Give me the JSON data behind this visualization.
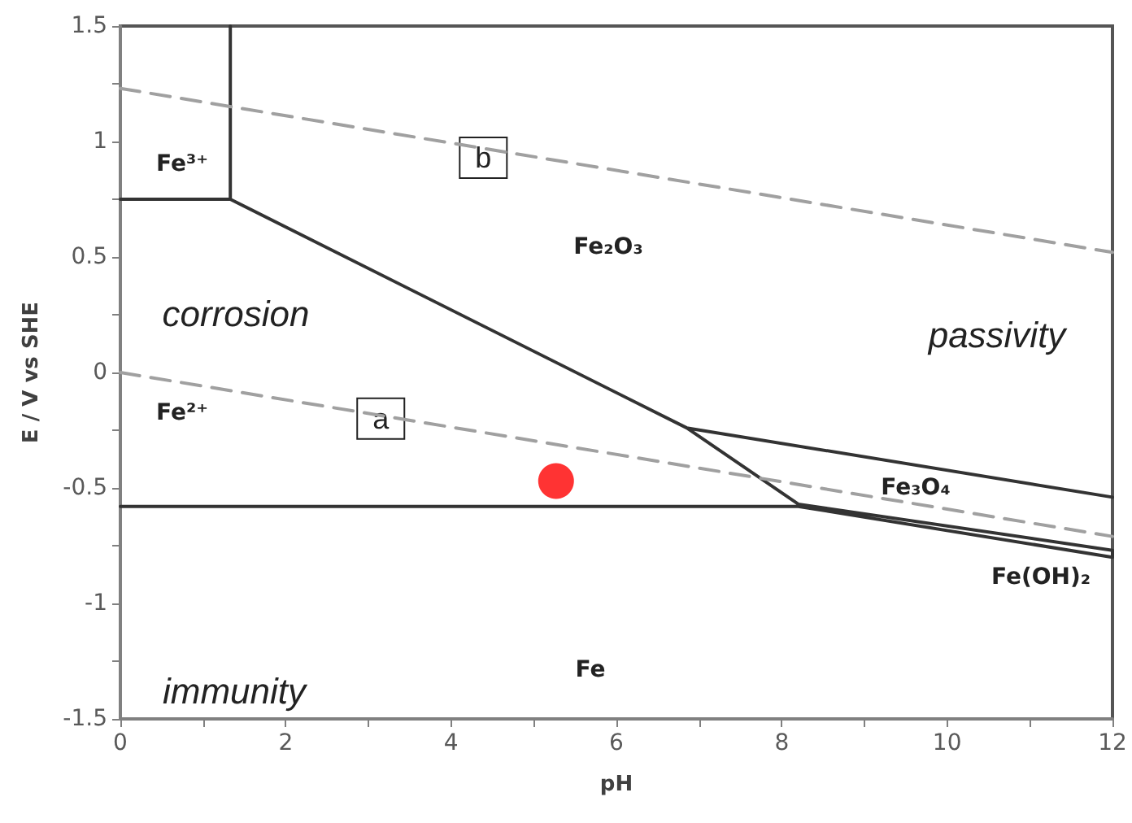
{
  "chart_data": {
    "type": "line",
    "xlabel": "pH",
    "ylabel": "E / V vs SHE",
    "xlim": [
      0,
      12
    ],
    "ylim": [
      -1.5,
      1.5
    ],
    "xticks": [
      0,
      {
        "value": 1,
        "label": null
      },
      2,
      {
        "value": 3,
        "label": null
      },
      4,
      {
        "value": 5,
        "label": null
      },
      6,
      {
        "value": 7,
        "label": null
      },
      8,
      {
        "value": 9,
        "label": null
      },
      10,
      {
        "value": 11,
        "label": null
      },
      12
    ],
    "yticks": [
      -1.5,
      {
        "value": -1.25,
        "label": null
      },
      -1,
      {
        "value": -0.75,
        "label": null
      },
      -0.5,
      {
        "value": -0.25,
        "label": null
      },
      0,
      {
        "value": 0.25,
        "label": null
      },
      0.5,
      {
        "value": 0.75,
        "label": null
      },
      1,
      {
        "value": 1.25,
        "label": null
      },
      1.5
    ],
    "grid": false,
    "marker": "none",
    "line_style": "solid",
    "series": [
      {
        "color": "#333333",
        "x": [
          1.33,
          1.33,
          0,
          1.33,
          6.85,
          12,
          6.85,
          8.2,
          12,
          12,
          8.2,
          0
        ],
        "values": [
          1.5,
          0.75,
          0.75,
          0.75,
          -0.24,
          -0.54,
          -0.24,
          -0.57,
          -0.77,
          -0.8,
          -0.58,
          -0.58
        ]
      },
      {
        "color": "#a0a0a0",
        "line_style": "dashed",
        "x": [
          0,
          12
        ],
        "values": [
          0,
          -0.71
        ]
      },
      {
        "color": "#a0a0a0",
        "line_style": "dashed",
        "x": [
          0,
          12
        ],
        "values": [
          1.23,
          0.52
        ]
      },
      {
        "type": "scatter",
        "marker": "circle",
        "color": "#ff0000",
        "x": [
          5.27
        ],
        "values": [
          -0.47
        ]
      }
    ],
    "annotations": [
      "Fe³⁺",
      {
        "text": "b",
        "x": 4.39,
        "y": 0.93
      },
      "Fe₂O₃",
      "corrosion",
      "passivity",
      "Fe²⁺",
      {
        "text": "a",
        "x": 3.15,
        "y": -0.2
      },
      "Fe₃O₄",
      "Fe(OH)₂",
      "Fe",
      "immunity"
    ]
  }
}
